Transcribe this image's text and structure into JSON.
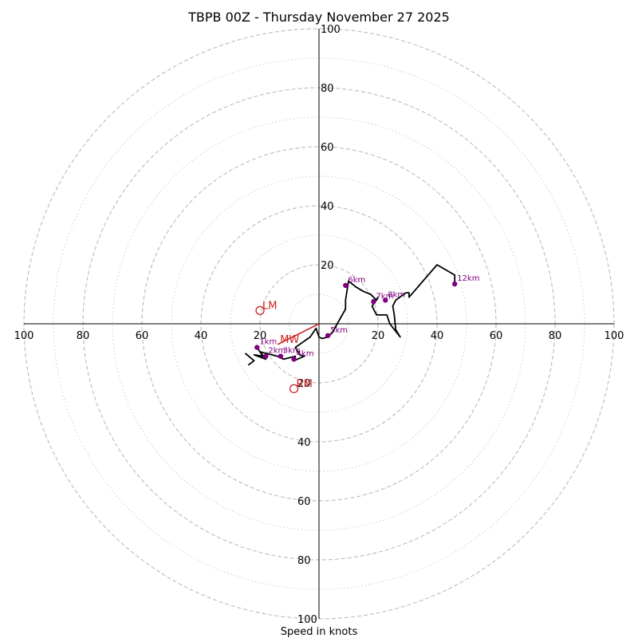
{
  "chart_data": {
    "type": "hodograph",
    "title": "TBPB 00Z - Thursday November 27 2025",
    "xlabel": "Speed in knots",
    "ring_max": 100,
    "major_rings": [
      20,
      40,
      60,
      80,
      100
    ],
    "minor_rings": [
      10,
      30,
      50,
      70,
      90
    ],
    "tick_labels": {
      "left": [
        "100",
        "80",
        "60",
        "40",
        "20"
      ],
      "right": [
        "20",
        "40",
        "60",
        "80",
        "100"
      ],
      "up": [
        "20",
        "40",
        "60",
        "80",
        "100"
      ],
      "down": [
        "20",
        "40",
        "60",
        "80",
        "100"
      ]
    },
    "tick_values": [
      20,
      40,
      60,
      80,
      100
    ],
    "colors": {
      "trace": "#000000",
      "height_marker": "#800080",
      "storm_motion": "#cc2222",
      "ring": "#bbbbbb"
    },
    "series": [
      {
        "name": "hodograph trace",
        "u": [
          -21,
          -19,
          -22,
          -18,
          -20,
          -14,
          -12,
          -8,
          -8.5,
          -5,
          -6.5,
          -8,
          -3,
          -1,
          0,
          1,
          3,
          4.5,
          9,
          9,
          10,
          12.5,
          15,
          17.5,
          19.5,
          20,
          18,
          19.5,
          23,
          24,
          27.5,
          26,
          25.5,
          25,
          26,
          29.5,
          30.5,
          30.5,
          40,
          46,
          46
        ],
        "v": [
          -8,
          -11,
          -10.5,
          -12,
          -9.5,
          -11,
          -12,
          -11,
          -12.5,
          -11,
          -10.5,
          -8,
          -4.5,
          -1.5,
          -4.5,
          -5,
          -4.5,
          -3,
          5,
          8,
          14.5,
          12.5,
          11,
          10,
          8,
          9,
          6,
          3,
          3,
          0,
          -4.5,
          -2,
          3,
          6,
          8,
          10.5,
          10.5,
          9,
          20,
          16.5,
          13
        ]
      },
      {
        "name": "deep layer segment",
        "u": [
          -25,
          -22,
          -24
        ],
        "v": [
          -10,
          -12.5,
          -14
        ]
      }
    ],
    "height_markers": [
      {
        "label": "1km",
        "u": -21,
        "v": -8
      },
      {
        "label": "2km",
        "u": -18,
        "v": -11
      },
      {
        "label": "3km",
        "u": -13,
        "v": -11
      },
      {
        "label": "4km",
        "u": -8.5,
        "v": -12
      },
      {
        "label": "5km",
        "u": 3,
        "v": -4
      },
      {
        "label": "6km",
        "u": 9,
        "v": 13
      },
      {
        "label": "7km",
        "u": 18.5,
        "v": 7.5
      },
      {
        "label": "8km",
        "u": 22.5,
        "v": 8
      },
      {
        "label": "12km",
        "u": 46,
        "v": 13.5
      }
    ],
    "points": [
      {
        "label": "LM",
        "u": -20,
        "v": 4.5
      },
      {
        "label": "RM",
        "u": -8.5,
        "v": -22
      },
      {
        "label": "MW",
        "u": -14,
        "v": -7
      }
    ],
    "storm_motion_line": {
      "from": [
        0,
        0
      ],
      "to": [
        -14,
        -7
      ]
    }
  }
}
